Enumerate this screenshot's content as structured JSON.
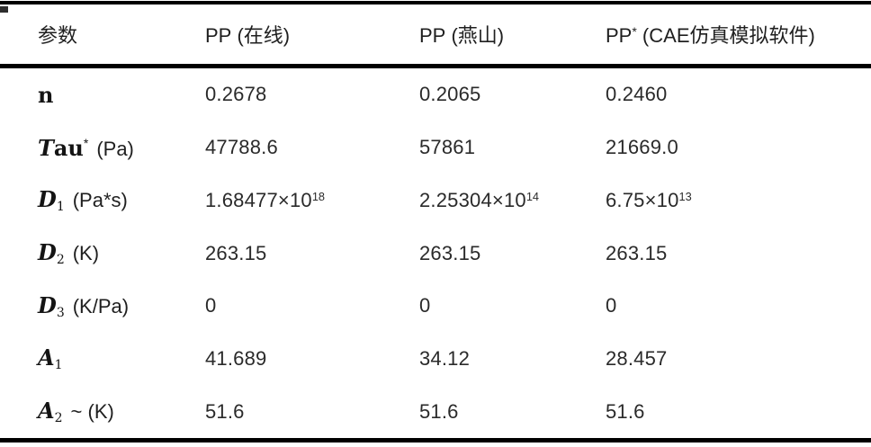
{
  "page": {
    "background": "#ffffff",
    "text_color": "#1f1f1f",
    "rule_color": "#000000"
  },
  "table": {
    "columns": [
      {
        "pre": "参数",
        "sup": "",
        "tail": ""
      },
      {
        "pre": "PP",
        "sup": "",
        "tail": " (在线)"
      },
      {
        "pre": "PP",
        "sup": "",
        "tail": " (燕山)"
      },
      {
        "pre": "PP",
        "sup": "*",
        "tail": " (CAE仿真模拟软件)"
      }
    ],
    "rows": [
      {
        "param": {
          "var_it": "",
          "var_rm": "n",
          "sub": "",
          "sup": "",
          "unit": ""
        },
        "values": [
          {
            "t": "0.2678",
            "s": ""
          },
          {
            "t": "0.2065",
            "s": ""
          },
          {
            "t": "0.2460",
            "s": ""
          }
        ]
      },
      {
        "param": {
          "var_it": "T",
          "var_rm": "au",
          "sub": "",
          "sup": "*",
          "unit": "(Pa)"
        },
        "values": [
          {
            "t": "47788.6",
            "s": ""
          },
          {
            "t": "57861",
            "s": ""
          },
          {
            "t": "21669.0",
            "s": ""
          }
        ]
      },
      {
        "param": {
          "var_it": "D",
          "var_rm": "",
          "sub": "1",
          "sup": "",
          "unit": "(Pa*s)"
        },
        "values": [
          {
            "t": "1.68477×10",
            "s": "18"
          },
          {
            "t": "2.25304×10",
            "s": "14"
          },
          {
            "t": "6.75×10",
            "s": "13"
          }
        ]
      },
      {
        "param": {
          "var_it": "D",
          "var_rm": "",
          "sub": "2",
          "sup": "",
          "unit": "(K)"
        },
        "values": [
          {
            "t": "263.15",
            "s": ""
          },
          {
            "t": "263.15",
            "s": ""
          },
          {
            "t": "263.15",
            "s": ""
          }
        ]
      },
      {
        "param": {
          "var_it": "D",
          "var_rm": "",
          "sub": "3",
          "sup": "",
          "unit": "(K/Pa)"
        },
        "values": [
          {
            "t": "0",
            "s": ""
          },
          {
            "t": "0",
            "s": ""
          },
          {
            "t": "0",
            "s": ""
          }
        ]
      },
      {
        "param": {
          "var_it": "A",
          "var_rm": "",
          "sub": "1",
          "sup": "",
          "unit": ""
        },
        "values": [
          {
            "t": "41.689",
            "s": ""
          },
          {
            "t": "34.12",
            "s": ""
          },
          {
            "t": "28.457",
            "s": ""
          }
        ]
      },
      {
        "param": {
          "var_it": "A",
          "var_rm": "",
          "sub": "2",
          "sup": "",
          "unit": "~ (K)"
        },
        "values": [
          {
            "t": "51.6",
            "s": ""
          },
          {
            "t": "51.6",
            "s": ""
          },
          {
            "t": "51.6",
            "s": ""
          }
        ]
      }
    ]
  }
}
